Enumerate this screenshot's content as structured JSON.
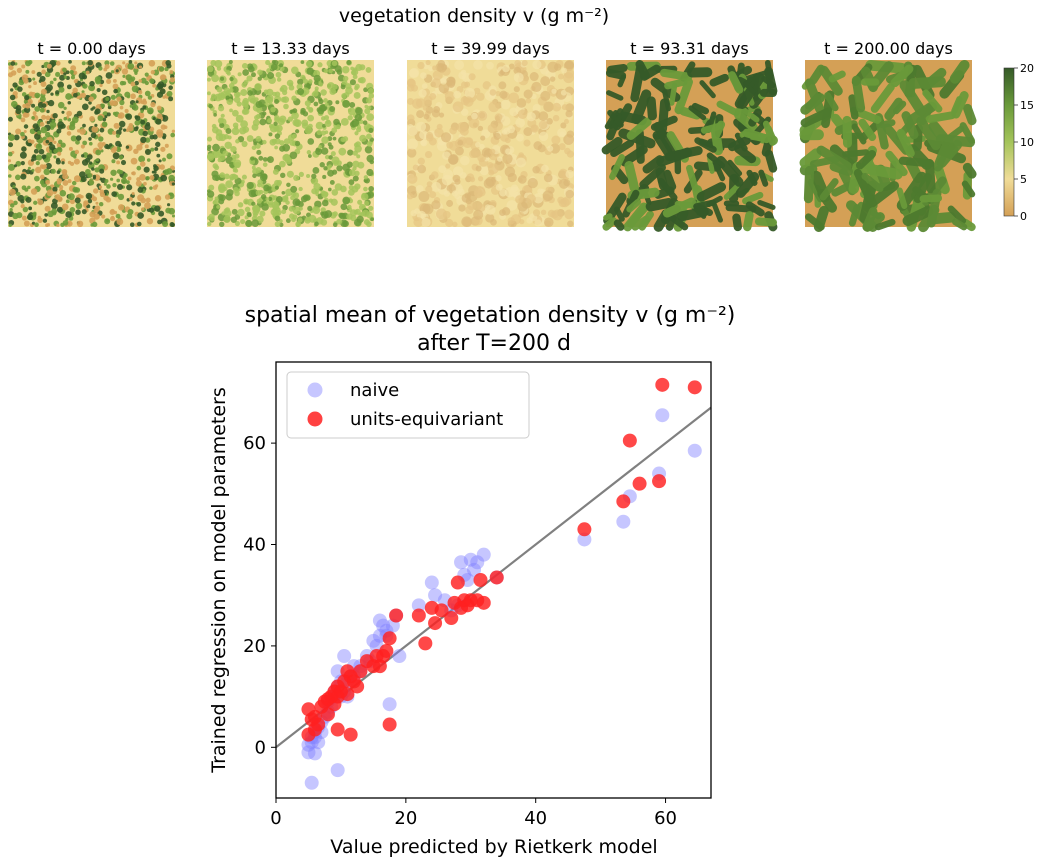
{
  "colors": {
    "naive": "#8080ff",
    "equivariant": "#ff2020",
    "fit_line": "#808080",
    "cmap": [
      "#d4a056",
      "#f0dc98",
      "#a4c45a",
      "#6a9a3a",
      "#355a28"
    ]
  },
  "figure": {
    "top_title": "vegetation density v (g m⁻²)"
  },
  "chart_data": [
    {
      "type": "heatmap",
      "title": "vegetation density v (g m⁻²)",
      "panels": [
        {
          "label": "t = 0.00 days",
          "pattern": "fine-noise"
        },
        {
          "label": "t = 13.33 days",
          "pattern": "fine-noise-green"
        },
        {
          "label": "t = 39.99 days",
          "pattern": "pale-noise"
        },
        {
          "label": "t = 93.31 days",
          "pattern": "labyrinth"
        },
        {
          "label": "t = 200.00 days",
          "pattern": "labyrinth-smooth"
        }
      ],
      "colorbar": {
        "vmin": 0,
        "vmax": 20,
        "ticks": [
          "0",
          "5",
          "10",
          "15",
          "20"
        ]
      }
    },
    {
      "type": "scatter",
      "title": "spatial mean of vegetation density v (g m⁻²)",
      "subtitle": "after T=200 d",
      "xlabel": "Value predicted by Rietkerk model",
      "ylabel": "Trained regression on model parameters",
      "xlim": [
        0,
        67
      ],
      "ylim": [
        -10,
        76
      ],
      "xticks": [
        0,
        20,
        40,
        60
      ],
      "yticks": [
        0,
        20,
        40,
        60
      ],
      "legend_placement": "top-left",
      "fit_line": {
        "x": [
          0,
          67
        ],
        "y": [
          0,
          67
        ]
      },
      "series": [
        {
          "name": "naive",
          "color": "#8080ff",
          "x": [
            5,
            5,
            5.5,
            5.5,
            6,
            6,
            6.5,
            6.5,
            7,
            7,
            7.5,
            8,
            8,
            8.5,
            9,
            9,
            9.5,
            9.5,
            10,
            10,
            10.5,
            10.5,
            11,
            11,
            11.5,
            12,
            12,
            13,
            13,
            14,
            14.5,
            15,
            15.5,
            16,
            16,
            16.5,
            17,
            17,
            17.5,
            18,
            18.5,
            19,
            22,
            24,
            24.5,
            26,
            27,
            28,
            28.5,
            29,
            29.5,
            30,
            30.5,
            31,
            32,
            34,
            47.5,
            53.5,
            54.5,
            59,
            59.5,
            64.5,
            5.5,
            9.5,
            6
          ],
          "y": [
            -1,
            0.5,
            1,
            2,
            2,
            3,
            1,
            4,
            3,
            5,
            6,
            7,
            9,
            8,
            10,
            11,
            12,
            15,
            10,
            13,
            11,
            18,
            13,
            10,
            14,
            14,
            16,
            15,
            16,
            18,
            17,
            21,
            20,
            22,
            25,
            24,
            23,
            22,
            8.5,
            24,
            26,
            18,
            28,
            32.5,
            30,
            29,
            27,
            28,
            36.5,
            34,
            33,
            37,
            35,
            36.5,
            38,
            33.5,
            41,
            44.5,
            49.5,
            54,
            65.5,
            58.5,
            -7,
            -4.5,
            -1.2
          ]
        },
        {
          "name": "units-equivariant",
          "color": "#ff2020",
          "x": [
            5,
            5,
            5.5,
            6,
            6,
            6.5,
            7,
            7.5,
            8,
            8,
            8.5,
            9,
            9,
            9.5,
            9.5,
            10,
            10.5,
            11,
            11,
            11.5,
            12,
            12.5,
            13,
            14,
            15,
            15.5,
            16,
            16.5,
            17,
            17.5,
            18.5,
            22,
            23,
            24,
            24.5,
            25.5,
            27,
            27.5,
            28,
            28.5,
            29,
            29.5,
            30,
            31,
            31.5,
            32,
            34,
            47.5,
            53.5,
            54.5,
            56,
            59,
            59.5,
            64.5,
            9.5,
            11.5,
            17.5
          ],
          "y": [
            2.5,
            7.5,
            5.5,
            3.5,
            6,
            4.5,
            8,
            9,
            6.5,
            9.5,
            10,
            8.5,
            11,
            10,
            12,
            11,
            13,
            10.5,
            15,
            14,
            13,
            12,
            15,
            17,
            16,
            18,
            16,
            18,
            19,
            21.5,
            26,
            26,
            20.5,
            27.5,
            24.5,
            27,
            25.5,
            28.5,
            32.5,
            27.5,
            29,
            28,
            29,
            29,
            33,
            28.5,
            33.5,
            43,
            48.5,
            60.5,
            52,
            52.5,
            71.5,
            71,
            3.5,
            2.5,
            4.5
          ]
        }
      ]
    }
  ]
}
